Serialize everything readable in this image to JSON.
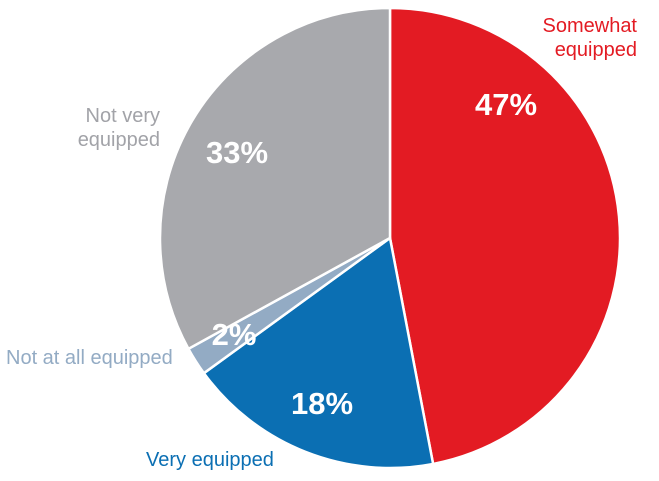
{
  "chart_data": {
    "type": "pie",
    "categories": [
      "Somewhat equipped",
      "Very equipped",
      "Not at all equipped",
      "Not very equipped"
    ],
    "values": [
      47,
      18,
      2,
      33
    ],
    "value_labels": [
      "47%",
      "18%",
      "2%",
      "33%"
    ],
    "colors": [
      "#e31b23",
      "#0b6fb3",
      "#93abc4",
      "#a8a9ad"
    ]
  }
}
